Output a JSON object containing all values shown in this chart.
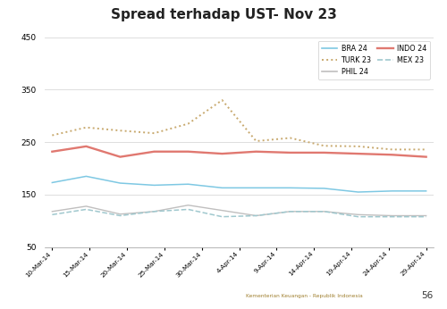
{
  "title": "Spread terhadap UST- Nov 23",
  "xlabels": [
    "10-Mar-14",
    "15-Mar-14",
    "20-Mar-14",
    "25-Mar-14",
    "30-Mar-14",
    "4-Apr-14",
    "9-Apr-14",
    "14-Apr-14",
    "19-Apr-14",
    "24-Apr-14",
    "29-Apr-14"
  ],
  "ylim": [
    50,
    450
  ],
  "yticks": [
    50,
    150,
    250,
    350,
    450
  ],
  "footer_text": "Kementerian Keuangan - Republik Indonesia",
  "page_number": "56",
  "series": {
    "BRA 24": {
      "color": "#7ec8e3",
      "linestyle": "solid",
      "linewidth": 1.1,
      "values": [
        173,
        185,
        172,
        168,
        170,
        163,
        163,
        163,
        162,
        155,
        157,
        157
      ]
    },
    "TURK 23": {
      "color": "#c8a96e",
      "linestyle": "dotted",
      "linewidth": 1.4,
      "values": [
        263,
        278,
        272,
        267,
        285,
        330,
        252,
        258,
        243,
        242,
        236,
        236
      ]
    },
    "PHIL 24": {
      "color": "#c0bfbf",
      "linestyle": "solid",
      "linewidth": 1.0,
      "values": [
        118,
        128,
        113,
        118,
        130,
        120,
        110,
        118,
        118,
        112,
        110,
        110
      ]
    },
    "INDO 24": {
      "color": "#e07870",
      "linestyle": "solid",
      "linewidth": 1.7,
      "values": [
        232,
        242,
        222,
        232,
        232,
        228,
        232,
        230,
        230,
        228,
        226,
        222
      ]
    },
    "MEX 23": {
      "color": "#a0c8ce",
      "linestyle": "dashed",
      "linewidth": 1.1,
      "values": [
        112,
        122,
        110,
        118,
        122,
        108,
        110,
        118,
        118,
        108,
        108,
        108
      ]
    }
  },
  "legend_col1": [
    "BRA 24",
    "PHIL 24",
    "MEX 23"
  ],
  "legend_col2": [
    "TURK 23",
    "INDO 24"
  ],
  "top_bar_color": "#5b5ea6",
  "bottom_bar_color": "#9090c0",
  "footer_color": "#a08030",
  "background_color": "#ffffff",
  "plot_bg_color": "#ffffff"
}
